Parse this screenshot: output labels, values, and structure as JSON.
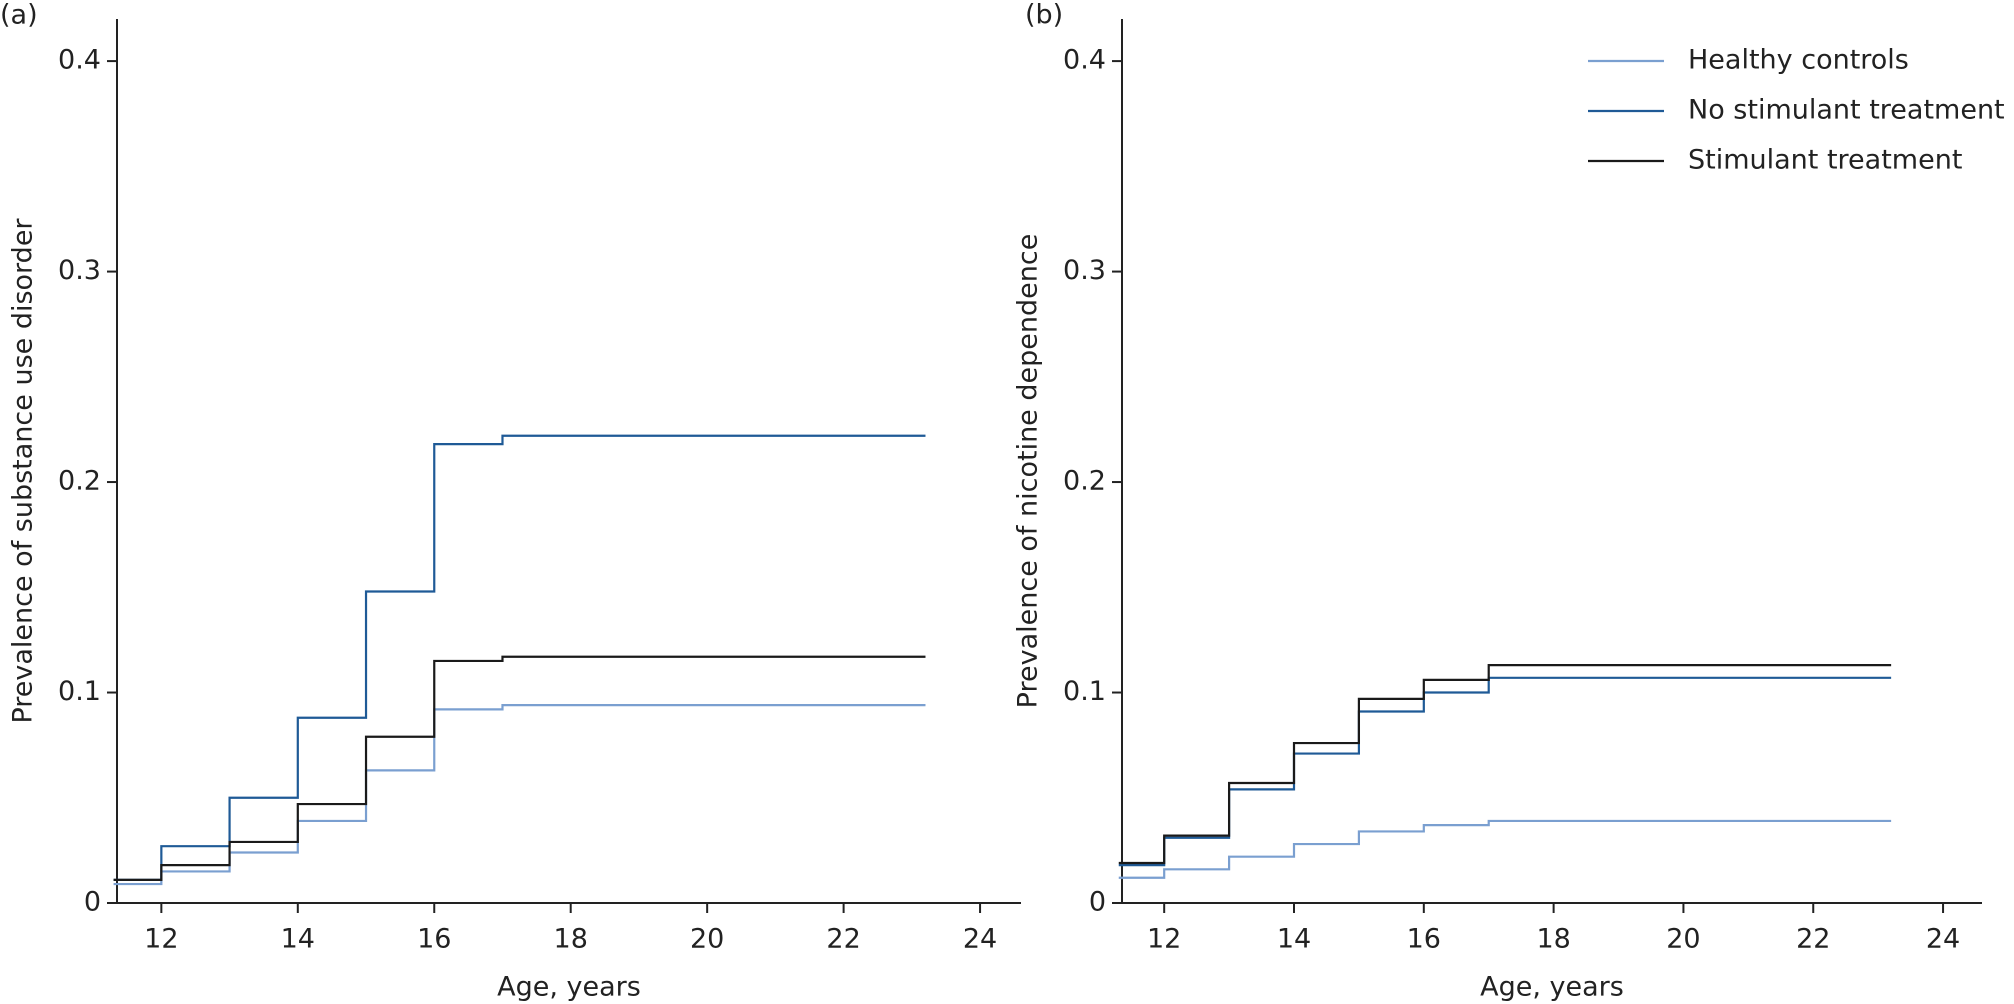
{
  "chart_data": [
    {
      "type": "line",
      "step": "post",
      "panel_label": "(a)",
      "x_label": "Age, years",
      "y_label": "Prevalence of substance use disorder",
      "x": [
        11.3,
        12,
        13,
        14,
        15,
        16,
        17,
        23.2
      ],
      "series": [
        {
          "name": "Healthy controls",
          "color": "#7a9fd0",
          "values": [
            0.009,
            0.015,
            0.024,
            0.039,
            0.063,
            0.092,
            0.094,
            0.094
          ]
        },
        {
          "name": "No stimulant treatment",
          "color": "#1f5a96",
          "values": [
            0.011,
            0.027,
            0.05,
            0.088,
            0.148,
            0.218,
            0.222,
            0.222
          ]
        },
        {
          "name": "Stimulant treatment",
          "color": "#1a1a1a",
          "values": [
            0.011,
            0.018,
            0.029,
            0.047,
            0.079,
            0.115,
            0.117,
            0.117
          ]
        }
      ],
      "xlim": [
        11.35,
        24.6
      ],
      "xticks": [
        12,
        14,
        16,
        18,
        20,
        22,
        24
      ],
      "ylim": [
        0,
        0.42
      ],
      "yticks": [
        0,
        0.1,
        0.2,
        0.3,
        0.4
      ]
    },
    {
      "type": "line",
      "step": "post",
      "panel_label": "(b)",
      "legend": "upper right",
      "x_label": "Age, years",
      "y_label": "Prevalence of nicotine dependence",
      "x": [
        11.3,
        12,
        13,
        14,
        15,
        16,
        17,
        23.2
      ],
      "series": [
        {
          "name": "Healthy controls",
          "color": "#7a9fd0",
          "values": [
            0.012,
            0.016,
            0.022,
            0.028,
            0.034,
            0.037,
            0.039,
            0.039
          ]
        },
        {
          "name": "No stimulant treatment",
          "color": "#1f5a96",
          "values": [
            0.018,
            0.031,
            0.054,
            0.071,
            0.091,
            0.1,
            0.107,
            0.107
          ]
        },
        {
          "name": "Stimulant treatment",
          "color": "#1a1a1a",
          "values": [
            0.019,
            0.032,
            0.057,
            0.076,
            0.097,
            0.106,
            0.113,
            0.113
          ]
        }
      ],
      "xlim": [
        11.35,
        24.6
      ],
      "xticks": [
        12,
        14,
        16,
        18,
        20,
        22,
        24
      ],
      "ylim": [
        0,
        0.42
      ],
      "yticks": [
        0,
        0.1,
        0.2,
        0.3,
        0.4
      ]
    }
  ]
}
